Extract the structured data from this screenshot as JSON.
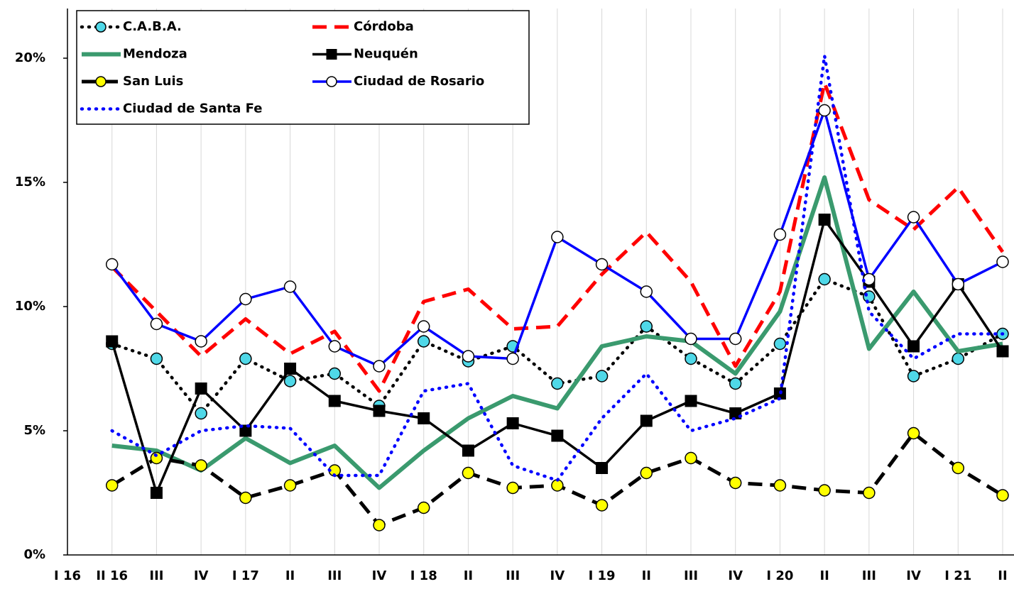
{
  "chart_data": {
    "type": "line",
    "categories": [
      "I 16",
      "II 16",
      "III",
      "IV",
      "I 17",
      "II",
      "III",
      "IV",
      "I 18",
      "II",
      "III",
      "IV",
      "I 19",
      "II",
      "III",
      "IV",
      "I 20",
      "II",
      "III",
      "IV",
      "I 21",
      "II"
    ],
    "ylim": [
      0,
      22
    ],
    "yticks": [
      {
        "value": 0,
        "label": "0%"
      },
      {
        "value": 5,
        "label": "5%"
      },
      {
        "value": 10,
        "label": "10%"
      },
      {
        "value": 15,
        "label": "15%"
      },
      {
        "value": 20,
        "label": "20%"
      }
    ],
    "grid": true,
    "legend": "upper-left",
    "series": [
      {
        "name": "C.A.B.A.",
        "color": "#000000",
        "line_style": "dotted",
        "marker": "circle",
        "marker_color": "#4fd8e8",
        "values": [
          null,
          8.5,
          7.9,
          5.7,
          7.9,
          7.0,
          7.3,
          6.0,
          8.6,
          7.8,
          8.4,
          6.9,
          7.2,
          9.2,
          7.9,
          6.9,
          8.5,
          11.1,
          10.4,
          7.2,
          7.9,
          8.9
        ]
      },
      {
        "name": "Córdoba",
        "color": "#ff0000",
        "line_style": "dashed",
        "marker": "none",
        "marker_color": "#ff0000",
        "values": [
          null,
          11.6,
          9.8,
          8.0,
          9.5,
          8.1,
          9.0,
          6.6,
          10.2,
          10.7,
          9.1,
          9.2,
          11.3,
          13.0,
          11.0,
          7.6,
          10.6,
          19.0,
          14.3,
          13.1,
          14.8,
          12.2
        ]
      },
      {
        "name": "Mendoza",
        "color": "#3a9a6e",
        "line_style": "solid-thick",
        "marker": "none",
        "marker_color": "#3a9a6e",
        "values": [
          null,
          4.4,
          4.2,
          3.4,
          4.7,
          3.7,
          4.4,
          2.7,
          4.2,
          5.5,
          6.4,
          5.9,
          8.4,
          8.8,
          8.6,
          7.3,
          9.8,
          15.2,
          8.3,
          10.6,
          8.2,
          8.5
        ]
      },
      {
        "name": "Neuquén",
        "color": "#000000",
        "line_style": "solid",
        "marker": "square",
        "marker_color": "#000000",
        "values": [
          null,
          8.6,
          2.5,
          6.7,
          5.0,
          7.5,
          6.2,
          5.8,
          5.5,
          4.2,
          5.3,
          4.8,
          3.5,
          5.4,
          6.2,
          5.7,
          6.5,
          13.5,
          11.0,
          8.4,
          10.9,
          8.2
        ]
      },
      {
        "name": "San Luis",
        "color": "#000000",
        "line_style": "dashed",
        "marker": "circle",
        "marker_color": "#ffff00",
        "values": [
          null,
          2.8,
          3.9,
          3.6,
          2.3,
          2.8,
          3.4,
          1.2,
          1.9,
          3.3,
          2.7,
          2.8,
          2.0,
          3.3,
          3.9,
          2.9,
          2.8,
          2.6,
          2.5,
          4.9,
          3.5,
          2.4
        ]
      },
      {
        "name": "Ciudad de Rosario",
        "color": "#0000ff",
        "line_style": "solid",
        "marker": "circle",
        "marker_color": "#ffffff",
        "values": [
          null,
          11.7,
          9.3,
          8.6,
          10.3,
          10.8,
          8.4,
          7.6,
          9.2,
          8.0,
          7.9,
          12.8,
          11.7,
          10.6,
          8.7,
          8.7,
          12.9,
          17.9,
          11.1,
          13.6,
          10.9,
          11.8
        ]
      },
      {
        "name": "Ciudad de Santa Fe",
        "color": "#0000ff",
        "line_style": "dotted",
        "marker": "none",
        "marker_color": "#0000ff",
        "values": [
          null,
          5.0,
          4.0,
          5.0,
          5.2,
          5.1,
          3.2,
          3.2,
          6.6,
          6.9,
          3.6,
          3.0,
          5.5,
          7.3,
          5.0,
          5.5,
          6.3,
          20.1,
          9.8,
          7.9,
          8.9,
          8.9
        ]
      }
    ]
  }
}
